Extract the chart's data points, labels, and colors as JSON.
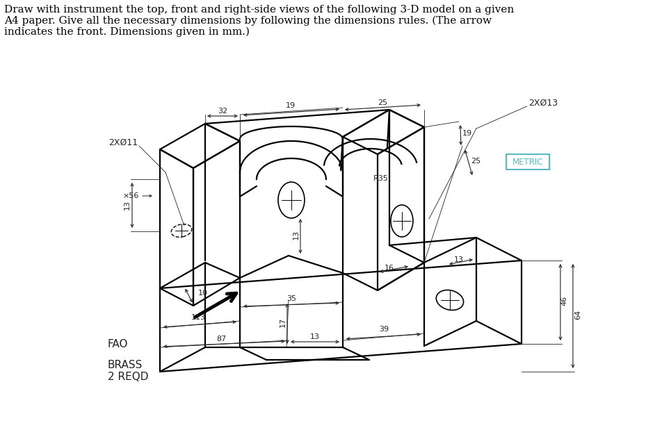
{
  "title_line1": "Draw with instrument the top, front and right-side views of the following 3-D model on a given",
  "title_line2": "A4 paper. Give all the necessary dimensions by following the dimensions rules. (The arrow",
  "title_line3": "indicates the front. Dimensions given in mm.)",
  "title_fontsize": 11,
  "bg_color": "#ffffff",
  "line_color": "#000000",
  "metric_box_color": "#5bb8c7",
  "fao_text": "FAO",
  "brass_text": "BRASS\n2 REQD",
  "metric_text": "METRIC",
  "dim_color": "#222222"
}
